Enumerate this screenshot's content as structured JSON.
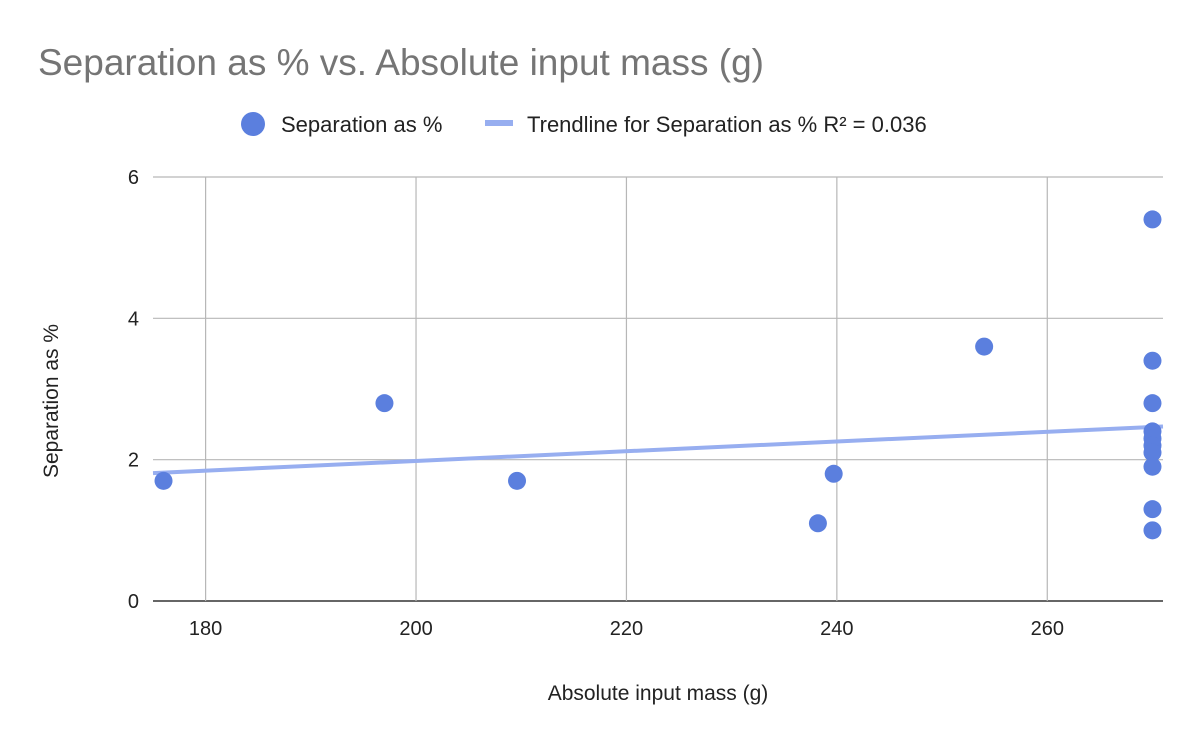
{
  "chart_data": {
    "type": "scatter",
    "title": "Separation as % vs. Absolute input mass (g)",
    "xlabel": "Absolute input mass (g)",
    "ylabel": "Separation as %",
    "xlim": [
      175,
      271
    ],
    "ylim": [
      0,
      6
    ],
    "xticks": [
      180,
      200,
      220,
      240,
      260
    ],
    "yticks": [
      0,
      2,
      4,
      6
    ],
    "grid": true,
    "legend_position": "top",
    "series": [
      {
        "name": "Separation as %",
        "color": "#5b7fde",
        "points": [
          {
            "x": 176,
            "y": 1.7
          },
          {
            "x": 197,
            "y": 2.8
          },
          {
            "x": 209.6,
            "y": 1.7
          },
          {
            "x": 238.2,
            "y": 1.1
          },
          {
            "x": 239.7,
            "y": 1.8
          },
          {
            "x": 254,
            "y": 3.6
          },
          {
            "x": 270,
            "y": 5.4
          },
          {
            "x": 270,
            "y": 3.4
          },
          {
            "x": 270,
            "y": 2.8
          },
          {
            "x": 270,
            "y": 2.4
          },
          {
            "x": 270,
            "y": 2.3
          },
          {
            "x": 270,
            "y": 2.2
          },
          {
            "x": 270,
            "y": 2.1
          },
          {
            "x": 270,
            "y": 1.9
          },
          {
            "x": 270,
            "y": 1.3
          },
          {
            "x": 270,
            "y": 1.0
          }
        ]
      }
    ],
    "trendline": {
      "label": "Trendline for Separation as % R² = 0.036",
      "color": "#97aef0",
      "type": "linear",
      "points": [
        {
          "x": 175,
          "y": 1.81
        },
        {
          "x": 271,
          "y": 2.47
        }
      ]
    }
  }
}
